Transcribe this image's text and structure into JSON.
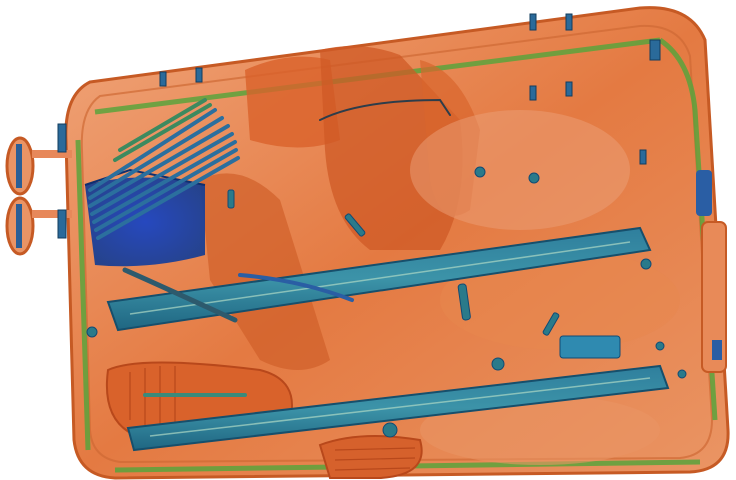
{
  "image": {
    "kind": "xray-baggage-scan",
    "palette": {
      "background": "#ffffff",
      "organic": "#e3753c",
      "organic_dense": "#c2501e",
      "organic_light": "#f2b592",
      "inorganic": "#5aa33c",
      "metal": "#2a7a8a",
      "metal_dense": "#124b74",
      "high_density": "#1d49b5"
    }
  }
}
